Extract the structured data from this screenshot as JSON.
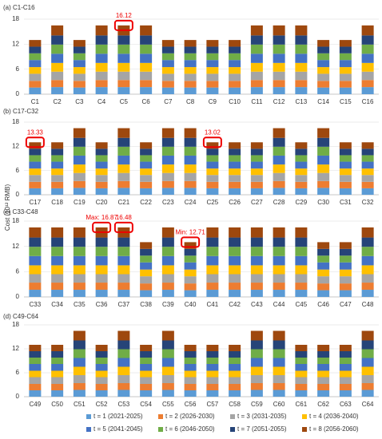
{
  "y_label": "Cost (10¹² RMB)",
  "chart_data": [
    {
      "type": "bar",
      "stacked": true,
      "title": "(a) C1-C16",
      "categories": [
        "C1",
        "C2",
        "C3",
        "C4",
        "C5",
        "C6",
        "C7",
        "C8",
        "C9",
        "C10",
        "C11",
        "C12",
        "C13",
        "C14",
        "C15",
        "C16"
      ],
      "ylim": [
        0,
        18
      ],
      "yticks": [
        0,
        6,
        12,
        18
      ],
      "grid": true,
      "series": [
        {
          "name": "t = 1 (2021-2025)",
          "color": "#5b9bd5",
          "values": [
            1.6,
            1.7,
            1.6,
            1.7,
            1.7,
            1.7,
            1.6,
            1.6,
            1.6,
            1.6,
            1.7,
            1.7,
            1.7,
            1.6,
            1.6,
            1.7
          ]
        },
        {
          "name": "t = 2 (2026-2030)",
          "color": "#ed7d31",
          "values": [
            1.6,
            1.7,
            1.6,
            1.7,
            1.7,
            1.7,
            1.6,
            1.6,
            1.6,
            1.6,
            1.7,
            1.7,
            1.7,
            1.6,
            1.6,
            1.7
          ]
        },
        {
          "name": "t = 3 (2031-2035)",
          "color": "#a5a5a5",
          "values": [
            1.7,
            2.0,
            1.7,
            2.0,
            2.0,
            2.0,
            1.7,
            1.7,
            1.7,
            1.7,
            2.0,
            2.0,
            2.0,
            1.7,
            1.7,
            2.0
          ]
        },
        {
          "name": "t = 4 (2036-2040)",
          "color": "#ffc000",
          "values": [
            1.6,
            2.1,
            1.6,
            2.1,
            2.1,
            2.1,
            1.6,
            1.6,
            1.6,
            1.6,
            2.1,
            2.1,
            2.1,
            1.6,
            1.6,
            2.1
          ]
        },
        {
          "name": "t = 5 (2041-2045)",
          "color": "#4472c4",
          "values": [
            1.7,
            2.2,
            1.7,
            2.2,
            2.2,
            2.2,
            1.7,
            1.7,
            1.7,
            1.7,
            2.2,
            2.2,
            2.2,
            1.7,
            1.7,
            2.2
          ]
        },
        {
          "name": "t = 6 (2046-2050)",
          "color": "#70ad47",
          "values": [
            1.6,
            2.2,
            1.6,
            2.2,
            2.2,
            2.2,
            1.6,
            1.6,
            1.6,
            1.6,
            2.2,
            2.2,
            2.2,
            1.6,
            1.6,
            2.2
          ]
        },
        {
          "name": "t = 7 (2051-2055)",
          "color": "#264478",
          "values": [
            1.6,
            2.2,
            1.6,
            2.2,
            2.2,
            2.2,
            1.6,
            1.6,
            1.6,
            1.6,
            2.2,
            2.2,
            2.2,
            1.6,
            1.6,
            2.2
          ]
        },
        {
          "name": "t = 8 (2056-2060)",
          "color": "#9e480e",
          "values": [
            1.6,
            2.4,
            1.6,
            2.4,
            2.4,
            2.4,
            1.6,
            1.6,
            1.6,
            1.6,
            2.4,
            2.4,
            2.4,
            1.6,
            1.6,
            2.4
          ]
        }
      ],
      "annotations": [
        {
          "text": "16.12",
          "category": "C5"
        }
      ]
    },
    {
      "type": "bar",
      "stacked": true,
      "title": "(b) C17-C32",
      "categories": [
        "C17",
        "C18",
        "C19",
        "C20",
        "C21",
        "C22",
        "C23",
        "C24",
        "C25",
        "C26",
        "C27",
        "C28",
        "C29",
        "C30",
        "C31",
        "C32"
      ],
      "ylim": [
        0,
        18
      ],
      "yticks": [
        0,
        6,
        12,
        18
      ],
      "grid": true,
      "series": [
        {
          "values": [
            1.6,
            1.6,
            1.7,
            1.6,
            1.7,
            1.6,
            1.7,
            1.7,
            1.6,
            1.6,
            1.6,
            1.7,
            1.6,
            1.7,
            1.6,
            1.6
          ]
        },
        {
          "values": [
            1.6,
            1.6,
            1.7,
            1.6,
            1.7,
            1.6,
            1.7,
            1.7,
            1.6,
            1.6,
            1.6,
            1.7,
            1.6,
            1.7,
            1.6,
            1.6
          ]
        },
        {
          "values": [
            1.7,
            1.7,
            2.0,
            1.7,
            2.0,
            1.7,
            2.0,
            2.0,
            1.7,
            1.7,
            1.7,
            2.0,
            1.7,
            2.0,
            1.7,
            1.7
          ]
        },
        {
          "values": [
            1.6,
            1.6,
            2.1,
            1.6,
            2.1,
            1.6,
            2.1,
            2.1,
            1.6,
            1.6,
            1.6,
            2.1,
            1.6,
            2.1,
            1.6,
            1.6
          ]
        },
        {
          "values": [
            1.7,
            1.7,
            2.2,
            1.7,
            2.2,
            1.7,
            2.2,
            2.2,
            1.7,
            1.7,
            1.7,
            2.2,
            1.7,
            2.2,
            1.7,
            1.7
          ]
        },
        {
          "values": [
            1.6,
            1.6,
            2.2,
            1.6,
            2.2,
            1.6,
            2.2,
            2.2,
            1.6,
            1.6,
            1.6,
            2.2,
            1.6,
            2.2,
            1.6,
            1.6
          ]
        },
        {
          "values": [
            1.6,
            1.6,
            2.2,
            1.6,
            2.2,
            1.6,
            2.2,
            2.2,
            1.6,
            1.6,
            1.6,
            2.2,
            1.6,
            2.2,
            1.6,
            1.6
          ]
        },
        {
          "values": [
            1.6,
            1.6,
            2.4,
            1.6,
            2.4,
            1.6,
            2.4,
            2.4,
            1.6,
            1.6,
            1.6,
            2.4,
            1.6,
            2.4,
            1.6,
            1.6
          ]
        }
      ],
      "annotations": [
        {
          "text": "13.33",
          "category": "C17"
        },
        {
          "text": "13.02",
          "category": "C25"
        }
      ]
    },
    {
      "type": "bar",
      "stacked": true,
      "title": "(c) C33-C48",
      "categories": [
        "C33",
        "C34",
        "C35",
        "C36",
        "C37",
        "C38",
        "C39",
        "C40",
        "C41",
        "C42",
        "C43",
        "C44",
        "C45",
        "C46",
        "C47",
        "C48"
      ],
      "ylim": [
        0,
        18
      ],
      "yticks": [
        0,
        6,
        12,
        18
      ],
      "grid": true,
      "series": [
        {
          "values": [
            1.7,
            1.7,
            1.7,
            1.7,
            1.7,
            1.6,
            1.7,
            1.6,
            1.7,
            1.7,
            1.7,
            1.7,
            1.7,
            1.6,
            1.6,
            1.7
          ]
        },
        {
          "values": [
            1.7,
            1.7,
            1.7,
            1.7,
            1.7,
            1.6,
            1.7,
            1.6,
            1.7,
            1.7,
            1.7,
            1.7,
            1.7,
            1.6,
            1.6,
            1.7
          ]
        },
        {
          "values": [
            2.0,
            2.0,
            2.0,
            2.0,
            2.0,
            1.7,
            2.0,
            1.7,
            2.0,
            2.0,
            2.0,
            2.0,
            2.0,
            1.7,
            1.7,
            2.0
          ]
        },
        {
          "values": [
            2.1,
            2.1,
            2.1,
            2.1,
            2.1,
            1.6,
            2.1,
            1.6,
            2.1,
            2.1,
            2.1,
            2.1,
            2.1,
            1.6,
            1.6,
            2.1
          ]
        },
        {
          "values": [
            2.2,
            2.2,
            2.2,
            2.2,
            2.2,
            1.7,
            2.2,
            1.7,
            2.2,
            2.2,
            2.2,
            2.2,
            2.2,
            1.7,
            1.7,
            2.2
          ]
        },
        {
          "values": [
            2.2,
            2.2,
            2.2,
            2.2,
            2.2,
            1.6,
            2.2,
            1.6,
            2.2,
            2.2,
            2.2,
            2.2,
            2.2,
            1.6,
            1.6,
            2.2
          ]
        },
        {
          "values": [
            2.2,
            2.2,
            2.2,
            2.2,
            2.2,
            1.6,
            2.2,
            1.6,
            2.2,
            2.2,
            2.2,
            2.2,
            2.2,
            1.6,
            1.6,
            2.2
          ]
        },
        {
          "values": [
            2.4,
            2.4,
            2.4,
            2.4,
            2.4,
            1.6,
            2.4,
            1.6,
            2.4,
            2.4,
            2.4,
            2.4,
            2.4,
            1.6,
            1.6,
            2.4
          ]
        }
      ],
      "annotations": [
        {
          "text": "Max: 16.87",
          "category": "C36"
        },
        {
          "text": "16.48",
          "category": "C37"
        },
        {
          "text": "Min: 12.71",
          "category": "C40"
        }
      ]
    },
    {
      "type": "bar",
      "stacked": true,
      "title": "(d) C49-C64",
      "categories": [
        "C49",
        "C50",
        "C51",
        "C52",
        "C53",
        "C54",
        "C55",
        "C56",
        "C57",
        "C58",
        "C59",
        "C60",
        "C61",
        "C62",
        "C63",
        "C64"
      ],
      "ylim": [
        0,
        18
      ],
      "yticks": [
        0,
        6,
        12,
        18
      ],
      "grid": true,
      "series": [
        {
          "values": [
            1.6,
            1.6,
            1.7,
            1.6,
            1.7,
            1.6,
            1.7,
            1.6,
            1.6,
            1.6,
            1.7,
            1.7,
            1.6,
            1.6,
            1.6,
            1.7
          ]
        },
        {
          "values": [
            1.6,
            1.6,
            1.7,
            1.6,
            1.7,
            1.6,
            1.7,
            1.6,
            1.6,
            1.6,
            1.7,
            1.7,
            1.6,
            1.6,
            1.6,
            1.7
          ]
        },
        {
          "values": [
            1.7,
            1.7,
            2.0,
            1.7,
            2.0,
            1.7,
            2.0,
            1.7,
            1.7,
            1.7,
            2.0,
            2.0,
            1.7,
            1.7,
            1.7,
            2.0
          ]
        },
        {
          "values": [
            1.6,
            1.6,
            2.1,
            1.6,
            2.1,
            1.6,
            2.1,
            1.6,
            1.6,
            1.6,
            2.1,
            2.1,
            1.6,
            1.6,
            1.6,
            2.1
          ]
        },
        {
          "values": [
            1.7,
            1.7,
            2.2,
            1.7,
            2.2,
            1.7,
            2.2,
            1.7,
            1.7,
            1.7,
            2.2,
            2.2,
            1.7,
            1.7,
            1.7,
            2.2
          ]
        },
        {
          "values": [
            1.6,
            1.6,
            2.2,
            1.6,
            2.2,
            1.6,
            2.2,
            1.6,
            1.6,
            1.6,
            2.2,
            2.2,
            1.6,
            1.6,
            1.6,
            2.2
          ]
        },
        {
          "values": [
            1.6,
            1.6,
            2.2,
            1.6,
            2.2,
            1.6,
            2.2,
            1.6,
            1.6,
            1.6,
            2.2,
            2.2,
            1.6,
            1.6,
            1.6,
            2.2
          ]
        },
        {
          "values": [
            1.6,
            1.6,
            2.4,
            1.6,
            2.4,
            1.6,
            2.4,
            1.6,
            1.6,
            1.6,
            2.4,
            2.4,
            1.6,
            1.6,
            1.6,
            2.4
          ]
        }
      ]
    }
  ]
}
